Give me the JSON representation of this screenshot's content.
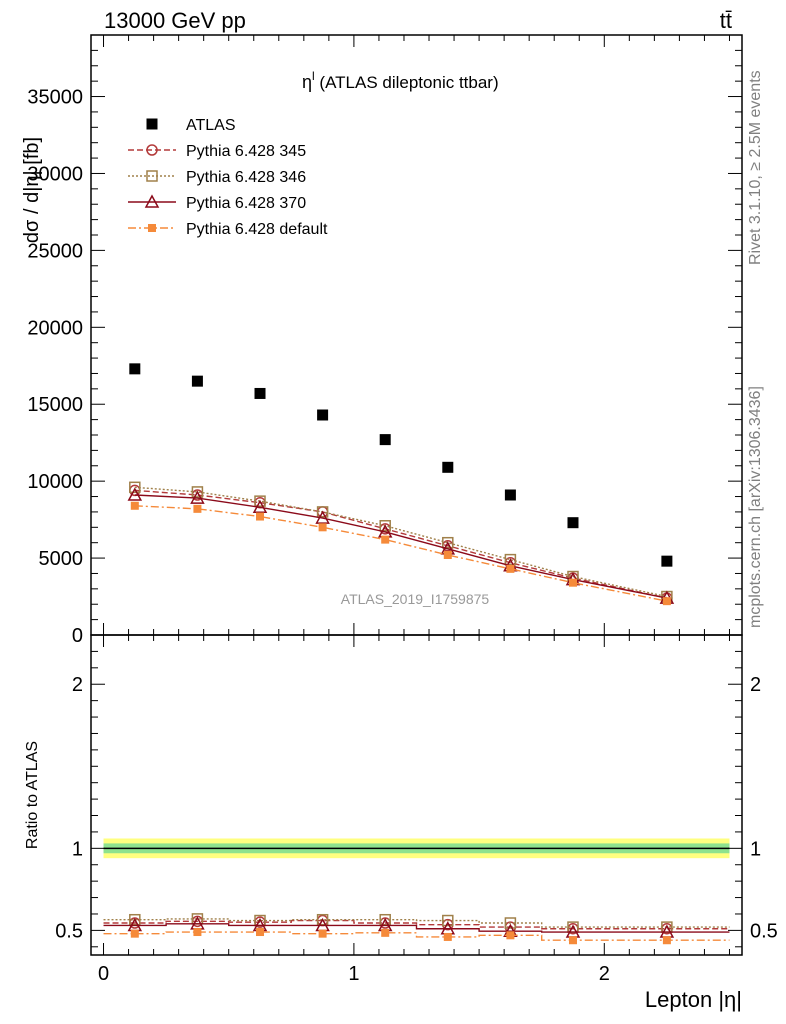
{
  "header": {
    "left": "13000 GeV pp",
    "right": "tt̄"
  },
  "side_labels": {
    "rivet": "Rivet 3.1.10, ≥ 2.5M events",
    "mcplots": "mcplots.cern.ch [arXiv:1306.3436]"
  },
  "watermark": "ATLAS_2019_I1759875",
  "colors": {
    "atlas": "#000000",
    "p345": "#b33a3a",
    "p346": "#a0804a",
    "p370": "#8b0a1a",
    "pdefault": "#f58a3a",
    "band_inner": "#8ee28e",
    "band_outer": "#ffff80"
  },
  "chart_data": [
    {
      "type": "scatter",
      "panel": "main",
      "title": "η^l (ATLAS dileptonic ttbar)",
      "title_main": "η",
      "title_sup": "l",
      "title_rest": " (ATLAS dileptonic ttbar)",
      "ylabel": "dσ / d|η| [fb]",
      "xlim": [
        -0.05,
        2.55
      ],
      "ylim": [
        0,
        39000
      ],
      "yticks": [
        0,
        5000,
        10000,
        15000,
        20000,
        25000,
        30000,
        35000
      ],
      "ytick_labels": [
        "0",
        "5000",
        "10000",
        "15000",
        "20000",
        "25000",
        "30000",
        "35000"
      ],
      "x": [
        0.125,
        0.375,
        0.625,
        0.875,
        1.125,
        1.375,
        1.625,
        1.875,
        2.25
      ],
      "bin_edges": [
        0,
        0.25,
        0.5,
        0.75,
        1.0,
        1.25,
        1.5,
        1.75,
        2.0,
        2.5
      ],
      "legend_position": "top-left",
      "series": [
        {
          "name": "ATLAS",
          "key": "atlas",
          "marker": "filled-square",
          "line": "none",
          "values": [
            17300,
            16500,
            15700,
            14300,
            12700,
            10900,
            9100,
            7300,
            4800
          ]
        },
        {
          "name": "Pythia 6.428 345",
          "key": "p345",
          "marker": "open-circle",
          "line": "dashed",
          "values": [
            9400,
            9100,
            8600,
            8000,
            6900,
            5800,
            4700,
            3700,
            2400
          ]
        },
        {
          "name": "Pythia 6.428 346",
          "key": "p346",
          "marker": "open-square",
          "line": "dotted",
          "values": [
            9600,
            9300,
            8700,
            8000,
            7100,
            6000,
            4900,
            3800,
            2500
          ]
        },
        {
          "name": "Pythia 6.428 370",
          "key": "p370",
          "marker": "open-triangle",
          "line": "solid",
          "values": [
            9100,
            8900,
            8300,
            7600,
            6700,
            5600,
            4500,
            3600,
            2400
          ]
        },
        {
          "name": "Pythia 6.428 default",
          "key": "pdefault",
          "marker": "filled-square-small",
          "line": "dashdot",
          "values": [
            8400,
            8200,
            7700,
            7000,
            6200,
            5200,
            4300,
            3400,
            2200
          ]
        }
      ]
    },
    {
      "type": "line",
      "panel": "ratio",
      "ylabel": "Ratio to ATLAS",
      "xlabel": "Lepton |η|",
      "xlim": [
        -0.05,
        2.55
      ],
      "ylim": [
        0.35,
        2.3
      ],
      "yticks": [
        0.5,
        1,
        2
      ],
      "ytick_labels": [
        "0.5",
        "1",
        "2"
      ],
      "xticks": [
        0,
        1,
        2
      ],
      "xtick_labels": [
        "0",
        "1",
        "2"
      ],
      "x": [
        0.125,
        0.375,
        0.625,
        0.875,
        1.125,
        1.375,
        1.625,
        1.875,
        2.25
      ],
      "bin_edges": [
        0,
        0.25,
        0.5,
        0.75,
        1.0,
        1.25,
        1.5,
        1.75,
        2.0,
        2.5
      ],
      "reference": 1,
      "band_inner": 0.03,
      "band_outer": 0.06,
      "series": [
        {
          "name": "Pythia 6.428 345",
          "key": "p345",
          "values": [
            0.545,
            0.555,
            0.55,
            0.56,
            0.545,
            0.535,
            0.52,
            0.51,
            0.51
          ]
        },
        {
          "name": "Pythia 6.428 346",
          "key": "p346",
          "values": [
            0.565,
            0.57,
            0.56,
            0.565,
            0.565,
            0.56,
            0.545,
            0.52,
            0.52
          ]
        },
        {
          "name": "Pythia 6.428 370",
          "key": "p370",
          "values": [
            0.53,
            0.54,
            0.53,
            0.53,
            0.53,
            0.51,
            0.495,
            0.49,
            0.49
          ]
        },
        {
          "name": "Pythia 6.428 default",
          "key": "pdefault",
          "values": [
            0.48,
            0.49,
            0.49,
            0.48,
            0.485,
            0.46,
            0.47,
            0.44,
            0.44
          ]
        }
      ]
    }
  ]
}
